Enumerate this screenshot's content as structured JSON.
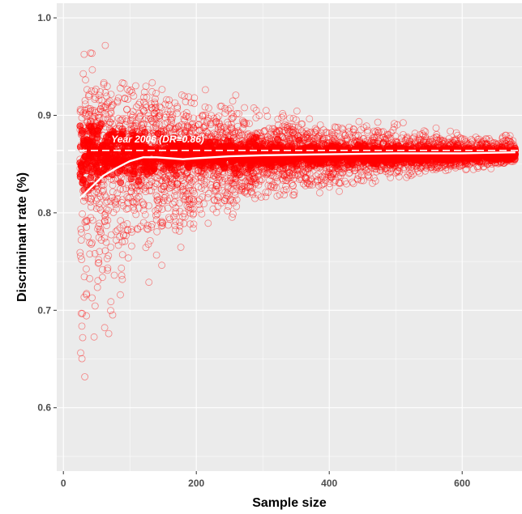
{
  "chart_data": {
    "type": "scatter",
    "title": "",
    "xlabel": "Sample size",
    "ylabel": "Discriminant rate (%)",
    "xlim": [
      -10,
      690
    ],
    "ylim": [
      0.535,
      1.015
    ],
    "x_ticks": [
      0,
      200,
      400,
      600
    ],
    "x_tick_labels": [
      "0",
      "200",
      "400",
      "600"
    ],
    "y_ticks": [
      0.6,
      0.7,
      0.8,
      0.9,
      1.0
    ],
    "y_tick_labels": [
      "0.6",
      "0.7",
      "0.8",
      "0.9",
      "1.0"
    ],
    "grid": true,
    "legend": "none",
    "colors": {
      "points": "#ff0000",
      "panel": "#ebebeb",
      "smooth_line": "#ffffff",
      "reference_line": "#ffffff"
    },
    "series": [
      {
        "kind": "points",
        "x_range": [
          25,
          680
        ],
        "center": 0.86,
        "spread_envelope": [
          {
            "x": 25,
            "low": 0.56,
            "high": 1.0
          },
          {
            "x": 50,
            "low": 0.6,
            "high": 0.98
          },
          {
            "x": 100,
            "low": 0.7,
            "high": 0.96
          },
          {
            "x": 150,
            "low": 0.73,
            "high": 0.94
          },
          {
            "x": 200,
            "low": 0.77,
            "high": 0.93
          },
          {
            "x": 300,
            "low": 0.8,
            "high": 0.915
          },
          {
            "x": 400,
            "low": 0.815,
            "high": 0.9
          },
          {
            "x": 500,
            "low": 0.83,
            "high": 0.893
          },
          {
            "x": 600,
            "low": 0.84,
            "high": 0.888
          },
          {
            "x": 680,
            "low": 0.845,
            "high": 0.885
          }
        ]
      },
      {
        "kind": "smooth_line",
        "x": [
          25,
          40,
          60,
          80,
          100,
          120,
          140,
          160,
          180,
          200,
          250,
          300,
          400,
          500,
          600,
          680
        ],
        "y": [
          0.815,
          0.825,
          0.838,
          0.846,
          0.853,
          0.857,
          0.857,
          0.856,
          0.855,
          0.856,
          0.858,
          0.859,
          0.86,
          0.861,
          0.861,
          0.862
        ]
      },
      {
        "kind": "reference_line",
        "y": 0.864
      }
    ],
    "annotation": {
      "text": "Year 2006 (DR=0.86)",
      "x": 72,
      "y": 0.872
    }
  }
}
